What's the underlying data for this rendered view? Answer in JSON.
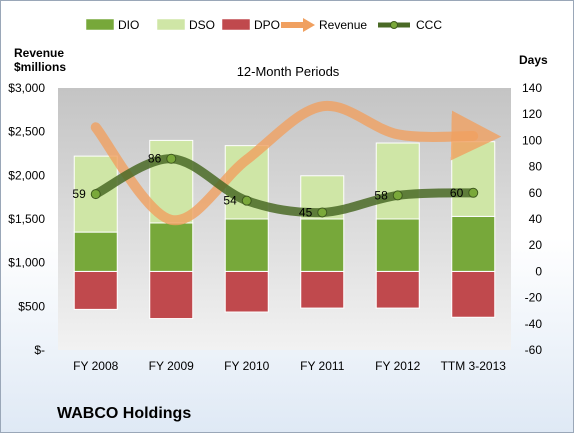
{
  "company_name": "WABCO Holdings",
  "chart_data": {
    "type": "bar",
    "subtitle": "12-Month Periods",
    "left_axis_title": [
      "Revenue",
      "$millions"
    ],
    "right_axis_title": "Days",
    "categories": [
      "FY 2008",
      "FY 2009",
      "FY 2010",
      "FY 2011",
      "FY 2012",
      "TTM 3-2013"
    ],
    "left_ticks": [
      "$-",
      "$500",
      "$1,000",
      "$1,500",
      "$2,000",
      "$2,500",
      "$3,000"
    ],
    "left_ylim": [
      0,
      3000
    ],
    "right_ticks": [
      "-60",
      "-40",
      "-20",
      "0",
      "20",
      "40",
      "60",
      "80",
      "100",
      "120",
      "140"
    ],
    "right_ylim": [
      -60,
      140
    ],
    "legend_placement": "top",
    "legend": [
      {
        "name": "DIO",
        "color": "#77a83a",
        "kind": "bar"
      },
      {
        "name": "DSO",
        "color": "#cfe6a6",
        "kind": "bar"
      },
      {
        "name": "DPO",
        "color": "#c0494d",
        "kind": "bar"
      },
      {
        "name": "Revenue",
        "color": "#f0a060",
        "kind": "arrow"
      },
      {
        "name": "CCC",
        "color": "#4a6a26",
        "kind": "line"
      }
    ],
    "series": [
      {
        "name": "DIO",
        "axis": "right",
        "values": [
          30,
          37,
          40,
          40,
          40,
          42
        ]
      },
      {
        "name": "DSO",
        "axis": "right",
        "values": [
          58,
          63,
          56,
          33,
          58,
          57
        ]
      },
      {
        "name": "DPO",
        "axis": "right",
        "values": [
          -29,
          -36,
          -31,
          -28,
          -28,
          -35
        ]
      },
      {
        "name": "Revenue",
        "axis": "left",
        "values": [
          2550,
          1490,
          2180,
          2790,
          2470,
          2450
        ]
      },
      {
        "name": "CCC",
        "axis": "right",
        "values": [
          59,
          86,
          54,
          45,
          58,
          60
        ]
      }
    ],
    "ccc_labels": [
      "59",
      "86",
      "54",
      "45",
      "58",
      "60"
    ],
    "grid": false
  },
  "colors": {
    "plot_bg": "#b5b5b5",
    "dio": "#77a83a",
    "dso": "#cfe6a6",
    "dpo": "#c0494d",
    "revenue": "#f0a060",
    "ccc": "#4a6a26"
  }
}
